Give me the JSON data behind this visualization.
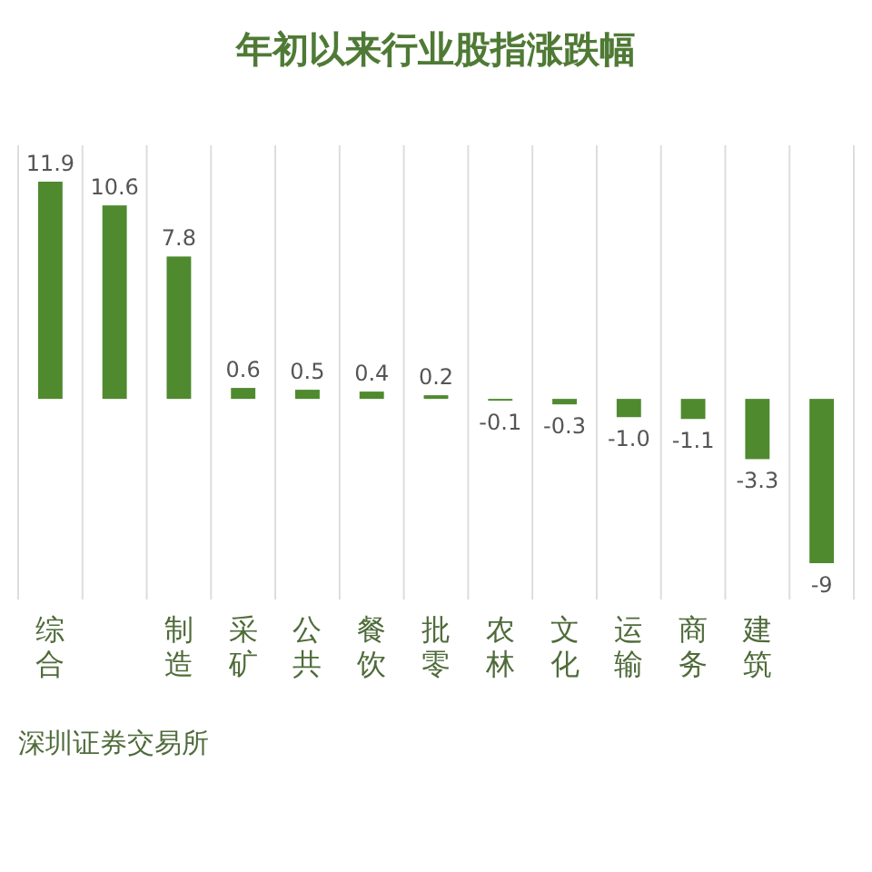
{
  "chart_data": {
    "type": "bar",
    "title": "年初以来行业股指涨跌幅",
    "categories": [
      "综合",
      null,
      "制造",
      "采矿",
      "公共",
      "餐饮",
      "批零",
      "农林",
      "文化",
      "运输",
      "商务",
      "建筑",
      null
    ],
    "values": [
      11.9,
      10.6,
      7.8,
      0.6,
      0.5,
      0.4,
      0.2,
      -0.1,
      -0.3,
      -1.0,
      -1.1,
      -3.3,
      -9
    ],
    "value_labels": [
      "11.9",
      "10.6",
      "7.8",
      "0.6",
      "0.5",
      "0.4",
      "0.2",
      "-0.1",
      "-0.3",
      "-1.0",
      "-1.1",
      "-3.3",
      "-9"
    ],
    "color": "#4f8a2f",
    "grid": "x",
    "annotations": [
      "深圳证券交易所"
    ]
  }
}
